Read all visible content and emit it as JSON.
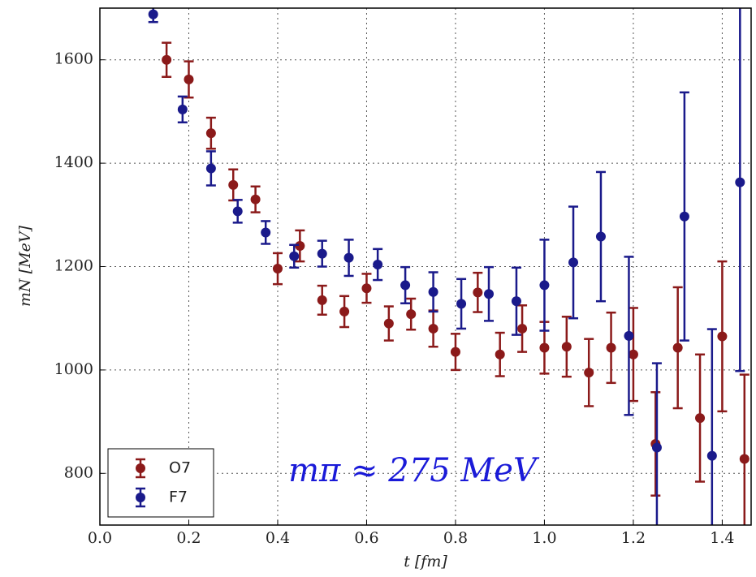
{
  "chart_data": {
    "type": "errorbar",
    "xlabel": "t [fm]",
    "ylabel": "mN [MeV]",
    "annotation": "mπ ≈ 275 MeV",
    "xlim": [
      0,
      1.465
    ],
    "ylim": [
      700,
      1700
    ],
    "xticks": [
      {
        "value": 0,
        "label": "0.0"
      },
      0.2,
      0.4,
      0.6,
      0.8,
      {
        "value": 1,
        "label": "1.0"
      },
      1.2,
      1.4
    ],
    "yticks": [
      800,
      1000,
      1200,
      1400,
      1600
    ],
    "grid": true,
    "legend": "lower left",
    "series": [
      {
        "name": "O7",
        "color": "#8b1a1a",
        "x": [
          0.15,
          0.2,
          0.25,
          0.3,
          0.35,
          0.4,
          0.45,
          0.5,
          0.55,
          0.6,
          0.65,
          0.7,
          0.75,
          0.8,
          0.85,
          0.9,
          0.95,
          1.0,
          1.05,
          1.1,
          1.15,
          1.2,
          1.25,
          1.3,
          1.35,
          1.4,
          1.45
        ],
        "values": [
          1600,
          1562,
          1458,
          1358,
          1330,
          1196,
          1240,
          1135,
          1113,
          1158,
          1090,
          1108,
          1080,
          1035,
          1150,
          1030,
          1080,
          1043,
          1045,
          995,
          1043,
          1030,
          857,
          1043,
          907,
          1065,
          828
        ],
        "errors": [
          33,
          35,
          30,
          30,
          25,
          30,
          30,
          28,
          30,
          28,
          33,
          30,
          35,
          35,
          38,
          42,
          45,
          50,
          58,
          65,
          68,
          90,
          100,
          117,
          123,
          145,
          163
        ]
      },
      {
        "name": "F7",
        "color": "#1a1a8b",
        "x": [
          0.12,
          0.186,
          0.25,
          0.31,
          0.373,
          0.437,
          0.5,
          0.56,
          0.625,
          0.687,
          0.75,
          0.813,
          0.875,
          0.937,
          1.0,
          1.065,
          1.127,
          1.19,
          1.253,
          1.315,
          1.377,
          1.44
        ],
        "values": [
          1688,
          1504,
          1390,
          1307,
          1266,
          1220,
          1225,
          1217,
          1204,
          1164,
          1151,
          1128,
          1147,
          1133,
          1164,
          1208,
          1258,
          1066,
          850,
          1297,
          834,
          1363
        ],
        "errors": [
          15,
          25,
          33,
          22,
          22,
          22,
          25,
          35,
          30,
          35,
          38,
          48,
          52,
          65,
          88,
          108,
          125,
          153,
          163,
          240,
          245,
          365
        ]
      }
    ]
  }
}
